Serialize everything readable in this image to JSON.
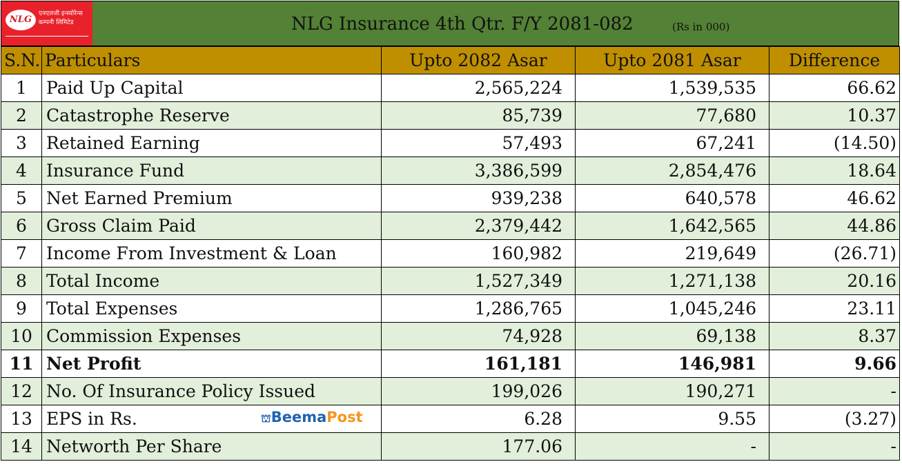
{
  "header": {
    "logo_abbr": "NLG",
    "logo_line1": "एनएलजी इन्स्योरेन्स",
    "logo_line2": "कम्पनी लिमिटेड",
    "title": "NLG Insurance 4th Qtr. F/Y 2081-082",
    "unit": "(Rs in 000)"
  },
  "columns": [
    "S.N.",
    "Particulars",
    "Upto 2082 Asar",
    "Upto 2081 Asar",
    "Difference"
  ],
  "rows": [
    {
      "sn": "1",
      "name": "Paid Up Capital",
      "cur": "2,565,224",
      "prev": "1,539,535",
      "diff": "66.62"
    },
    {
      "sn": "2",
      "name": "Catastrophe Reserve",
      "cur": "85,739",
      "prev": "77,680",
      "diff": "10.37"
    },
    {
      "sn": "3",
      "name": "Retained Earning",
      "cur": "57,493",
      "prev": "67,241",
      "diff": "(14.50)"
    },
    {
      "sn": "4",
      "name": "Insurance Fund",
      "cur": "3,386,599",
      "prev": "2,854,476",
      "diff": "18.64"
    },
    {
      "sn": "5",
      "name": "Net Earned Premium",
      "cur": "939,238",
      "prev": "640,578",
      "diff": "46.62"
    },
    {
      "sn": "6",
      "name": "Gross Claim Paid",
      "cur": "2,379,442",
      "prev": "1,642,565",
      "diff": "44.86"
    },
    {
      "sn": "7",
      "name": "Income From Investment & Loan",
      "cur": "160,982",
      "prev": "219,649",
      "diff": "(26.71)"
    },
    {
      "sn": "8",
      "name": "Total Income",
      "cur": "1,527,349",
      "prev": "1,271,138",
      "diff": "20.16"
    },
    {
      "sn": "9",
      "name": "Total Expenses",
      "cur": "1,286,765",
      "prev": "1,045,246",
      "diff": "23.11"
    },
    {
      "sn": "10",
      "name": "Commission Expenses",
      "cur": "74,928",
      "prev": "69,138",
      "diff": "8.37"
    },
    {
      "sn": "11",
      "name": "Net Profit",
      "cur": "161,181",
      "prev": "146,981",
      "diff": "9.66"
    },
    {
      "sn": "12",
      "name": "No. Of Insurance Policy Issued",
      "cur": "199,026",
      "prev": "190,271",
      "diff": "-"
    },
    {
      "sn": "13",
      "name": "EPS in Rs.",
      "cur": "6.28",
      "prev": "9.55",
      "diff": "(3.27)"
    },
    {
      "sn": "14",
      "name": "Networth Per Share",
      "cur": "177.06",
      "prev": "-",
      "diff": "-"
    }
  ],
  "watermark": {
    "part1": "Beema",
    "part2": "Post"
  }
}
